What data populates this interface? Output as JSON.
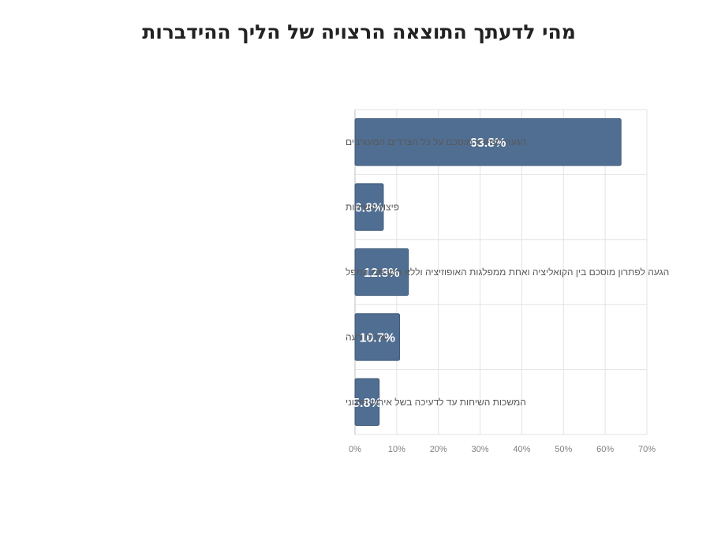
{
  "chart_data": {
    "type": "bar",
    "orientation": "horizontal",
    "title": "מהי לדעתך התוצאה הרצויה של הליך ההידברות",
    "categories": [
      "הגעה לפתרון מוסכם על כל הצדדים המעורבים",
      "פיצוץ השיחות",
      "הגעה לפתרון מוסכם בין הקואליציה ואחת ממפלגות האופוזיציה וללא הסכמת המפל",
      "אין לי דעה",
      "המשכות השיחות עד לדעיכה בשל אירוע חיצוני"
    ],
    "values": [
      63.8,
      6.8,
      12.8,
      10.7,
      5.8
    ],
    "value_labels": [
      "63.8%",
      "6.8%",
      "12.8%",
      "10.7%",
      "5.8%"
    ],
    "xlim": [
      0,
      70
    ],
    "x_ticks": [
      "0%",
      "10%",
      "20%",
      "30%",
      "40%",
      "50%",
      "60%",
      "70%"
    ],
    "xlabel": "",
    "ylabel": "",
    "grid": true,
    "legend": "none",
    "bar_color": "#506e92"
  }
}
